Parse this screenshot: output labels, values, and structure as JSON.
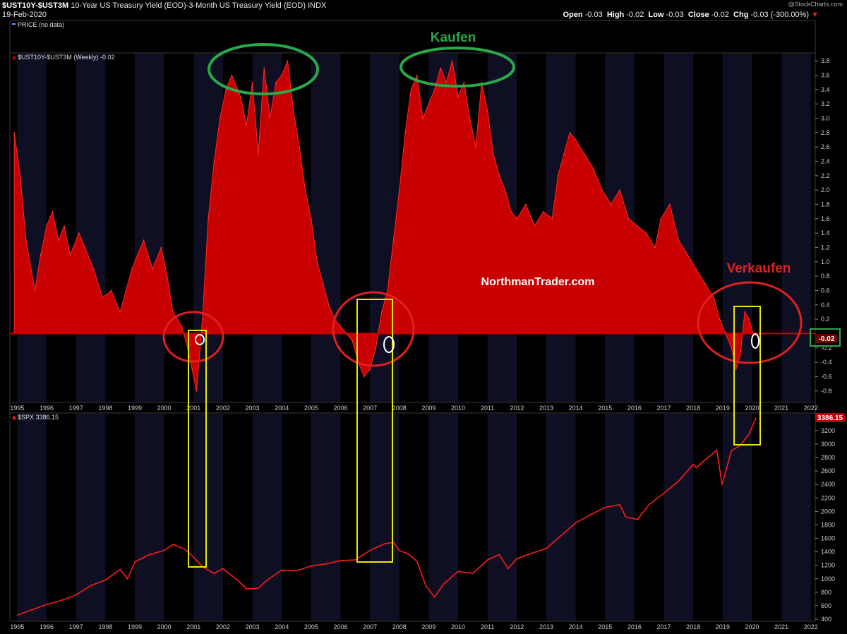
{
  "header": {
    "symbol": "$UST10Y-$UST3M",
    "description": "10-Year US Treasury Yield (EOD)-3-Month US Treasury Yield (EOD)",
    "exchange": "INDX",
    "date": "19-Feb-2020",
    "watermark": "@StockCharts.com",
    "ohlc": {
      "open_label": "Open",
      "open": "-0.03",
      "high_label": "High",
      "high": "-0.02",
      "low_label": "Low",
      "low": "-0.03",
      "close_label": "Close",
      "close": "-0.02",
      "chg_label": "Chg",
      "chg": "-0.03 (-300.00%)"
    }
  },
  "price_panel": {
    "legend": "PRICE (no data)"
  },
  "top_panel": {
    "legend": "$UST10Y-$UST3M (Weekly) -0.02",
    "current_value": "-0.02"
  },
  "bottom_panel": {
    "legend": "$SPX 3386.15",
    "current_value": "3386.15"
  },
  "annotations": {
    "buy": "Kaufen",
    "sell": "Verkaufen",
    "site": "NorthmanTrader.com"
  },
  "colors": {
    "background": "#000000",
    "band": "#0f0f24",
    "area": "#c80000",
    "line": "#ff1a1a",
    "buy": "#2aa84a",
    "sell": "#e02020",
    "highlight": "#e8e800"
  },
  "chart_data": [
    {
      "type": "area",
      "series": [
        {
          "name": "$UST10Y-$UST3M (Weekly)",
          "x": [
            1994.9,
            1995.1,
            1995.3,
            1995.6,
            1995.8,
            1996.0,
            1996.2,
            1996.4,
            1996.6,
            1996.8,
            1997.1,
            1997.3,
            1997.6,
            1997.9,
            1998.2,
            1998.5,
            1998.7,
            1998.9,
            1999.1,
            1999.3,
            1999.6,
            1999.9,
            2000.1,
            2000.3,
            2000.6,
            2000.8,
            2000.95,
            2001.1,
            2001.3,
            2001.5,
            2001.7,
            2001.9,
            2002.1,
            2002.3,
            2002.6,
            2002.8,
            2003.0,
            2003.2,
            2003.4,
            2003.6,
            2003.8,
            2004.0,
            2004.2,
            2004.4,
            2004.6,
            2004.8,
            2005.0,
            2005.2,
            2005.4,
            2005.6,
            2005.8,
            2006.0,
            2006.2,
            2006.4,
            2006.6,
            2006.8,
            2007.0,
            2007.2,
            2007.4,
            2007.6,
            2007.8,
            2008.0,
            2008.2,
            2008.4,
            2008.6,
            2008.8,
            2009.0,
            2009.2,
            2009.4,
            2009.6,
            2009.8,
            2010.0,
            2010.2,
            2010.4,
            2010.6,
            2010.8,
            2011.0,
            2011.2,
            2011.4,
            2011.6,
            2011.8,
            2012.0,
            2012.3,
            2012.6,
            2012.9,
            2013.2,
            2013.4,
            2013.6,
            2013.8,
            2014.0,
            2014.3,
            2014.6,
            2014.9,
            2015.2,
            2015.5,
            2015.8,
            2016.1,
            2016.4,
            2016.7,
            2016.9,
            2017.2,
            2017.5,
            2017.8,
            2018.1,
            2018.4,
            2018.7,
            2018.9,
            2019.1,
            2019.3,
            2019.45,
            2019.6,
            2019.75,
            2019.9,
            2020.05,
            2020.13
          ],
          "y": [
            2.8,
            2.2,
            1.3,
            0.6,
            1.1,
            1.5,
            1.7,
            1.3,
            1.5,
            1.1,
            1.4,
            1.2,
            0.9,
            0.5,
            0.6,
            0.3,
            0.6,
            0.9,
            1.1,
            1.3,
            0.9,
            1.2,
            0.8,
            0.3,
            0.1,
            -0.2,
            -0.5,
            -0.8,
            0.2,
            1.6,
            2.4,
            3.0,
            3.4,
            3.6,
            3.3,
            2.9,
            3.5,
            2.5,
            3.7,
            3.0,
            3.5,
            3.6,
            3.8,
            3.1,
            2.6,
            2.0,
            1.6,
            1.0,
            0.7,
            0.4,
            0.2,
            0.1,
            0.0,
            -0.1,
            -0.4,
            -0.6,
            -0.5,
            -0.2,
            0.3,
            0.6,
            1.3,
            2.0,
            2.8,
            3.4,
            3.6,
            3.0,
            3.2,
            3.4,
            3.7,
            3.5,
            3.8,
            3.3,
            3.5,
            3.0,
            2.6,
            3.5,
            3.1,
            2.5,
            2.2,
            2.0,
            1.7,
            1.6,
            1.8,
            1.5,
            1.7,
            1.6,
            2.2,
            2.5,
            2.8,
            2.7,
            2.5,
            2.3,
            2.0,
            1.8,
            2.0,
            1.6,
            1.5,
            1.4,
            1.2,
            1.6,
            1.8,
            1.3,
            1.1,
            0.9,
            0.7,
            0.5,
            0.2,
            0.0,
            -0.2,
            -0.5,
            -0.3,
            0.3,
            0.2,
            -0.02,
            -0.02
          ]
        }
      ],
      "ylim": [
        -0.95,
        3.9
      ],
      "xlim": [
        1994.75,
        2022.15
      ],
      "yticks": [
        -0.8,
        -0.6,
        -0.4,
        -0.2,
        0.2,
        0.4,
        0.6,
        0.8,
        1.0,
        1.2,
        1.4,
        1.6,
        1.8,
        2.0,
        2.2,
        2.4,
        2.6,
        2.8,
        3.0,
        3.2,
        3.4,
        3.6,
        3.8
      ],
      "xticks": [
        "1995",
        "1996",
        "1997",
        "1998",
        "1999",
        "2000",
        "2001",
        "2002",
        "2003",
        "2004",
        "2005",
        "2006",
        "2007",
        "2008",
        "2009",
        "2010",
        "2011",
        "2012",
        "2013",
        "2014",
        "2015",
        "2016",
        "2017",
        "2018",
        "2019",
        "2020",
        "2021",
        "2022"
      ]
    },
    {
      "type": "line",
      "series": [
        {
          "name": "$SPX",
          "x": [
            1995.0,
            1995.5,
            1996.0,
            1996.5,
            1997.0,
            1997.5,
            1998.0,
            1998.5,
            1998.75,
            1999.0,
            1999.5,
            2000.0,
            2000.3,
            2000.7,
            2001.0,
            2001.3,
            2001.7,
            2002.0,
            2002.5,
            2002.8,
            2003.2,
            2003.5,
            2004.0,
            2004.5,
            2005.0,
            2005.5,
            2006.0,
            2006.5,
            2007.0,
            2007.5,
            2007.8,
            2008.0,
            2008.3,
            2008.6,
            2008.9,
            2009.2,
            2009.5,
            2010.0,
            2010.5,
            2011.0,
            2011.4,
            2011.7,
            2012.0,
            2012.5,
            2013.0,
            2013.5,
            2014.0,
            2014.5,
            2015.0,
            2015.5,
            2015.7,
            2016.1,
            2016.5,
            2017.0,
            2017.5,
            2018.0,
            2018.1,
            2018.5,
            2018.8,
            2018.98,
            2019.3,
            2019.6,
            2019.9,
            2020.13
          ],
          "y": [
            460,
            540,
            620,
            680,
            760,
            900,
            980,
            1140,
            1000,
            1250,
            1360,
            1420,
            1510,
            1440,
            1320,
            1180,
            1080,
            1150,
            980,
            850,
            860,
            980,
            1130,
            1120,
            1190,
            1220,
            1270,
            1280,
            1420,
            1520,
            1540,
            1420,
            1370,
            1260,
            900,
            730,
            920,
            1110,
            1080,
            1280,
            1360,
            1150,
            1300,
            1380,
            1450,
            1640,
            1830,
            1950,
            2060,
            2100,
            1920,
            1880,
            2100,
            2270,
            2450,
            2700,
            2650,
            2800,
            2910,
            2400,
            2900,
            2980,
            3150,
            3386.15
          ]
        }
      ],
      "ylim": [
        380,
        3450
      ],
      "xlim": [
        1994.75,
        2022.15
      ],
      "yticks": [
        400,
        600,
        800,
        1000,
        1200,
        1400,
        1600,
        1800,
        2000,
        2200,
        2400,
        2600,
        2800,
        3000,
        3200
      ],
      "xticks": [
        "1995",
        "1996",
        "1997",
        "1998",
        "1999",
        "2000",
        "2001",
        "2002",
        "2003",
        "2004",
        "2005",
        "2006",
        "2007",
        "2008",
        "2009",
        "2010",
        "2011",
        "2012",
        "2013",
        "2014",
        "2015",
        "2016",
        "2017",
        "2018",
        "2019",
        "2020",
        "2021",
        "2022"
      ]
    }
  ]
}
